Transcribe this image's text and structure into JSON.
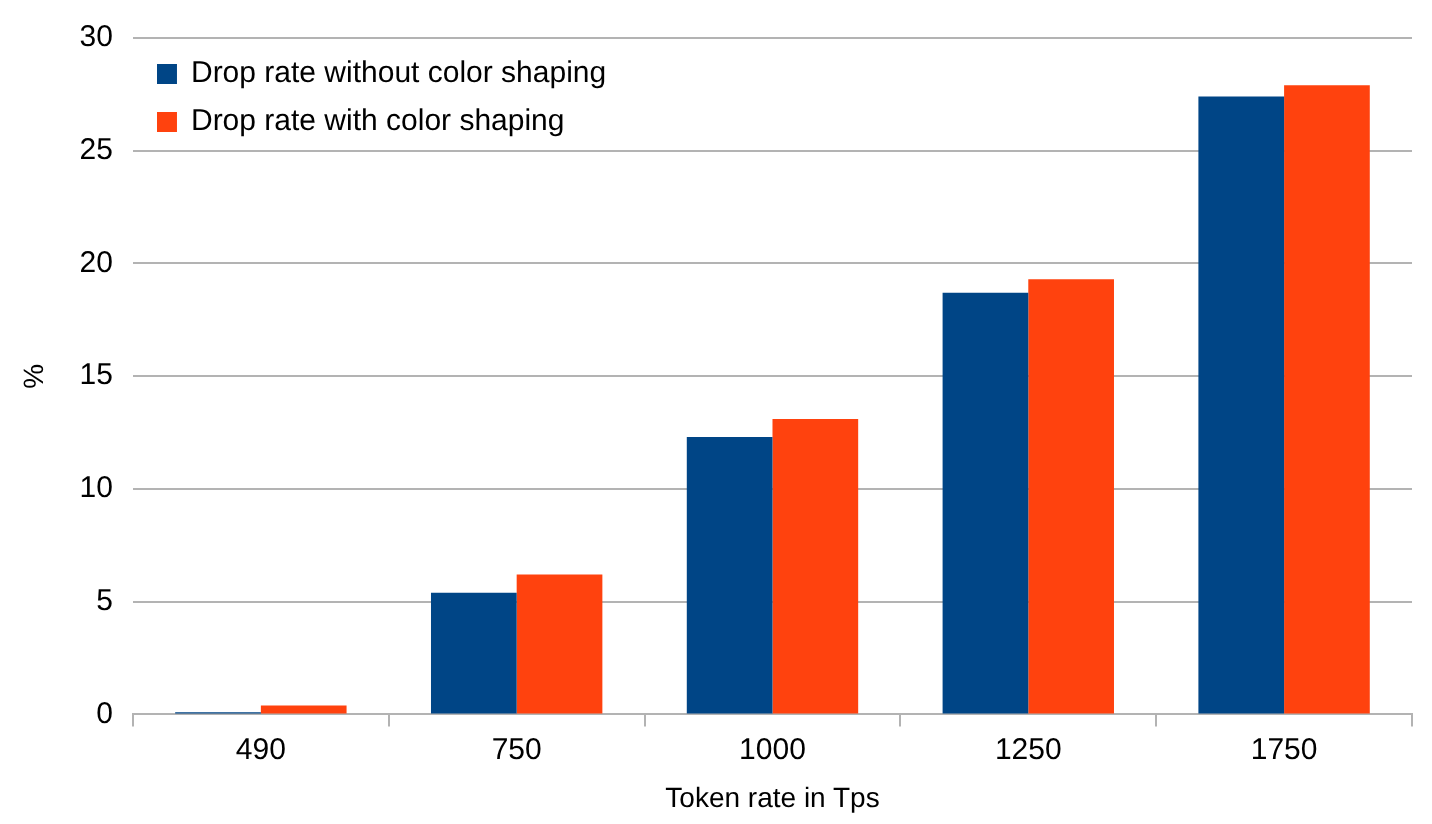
{
  "chart_data": {
    "type": "bar",
    "xlabel": "Token rate in Tps",
    "ylabel": "%",
    "categories": [
      "490",
      "750",
      "1000",
      "1250",
      "1750"
    ],
    "series": [
      {
        "name": "Drop rate without color shaping",
        "color": "#004586",
        "values": [
          0.1,
          5.4,
          12.3,
          18.7,
          27.4
        ]
      },
      {
        "name": "Drop rate with color shaping",
        "color": "#ff420e",
        "values": [
          0.4,
          6.2,
          13.1,
          19.3,
          27.9
        ]
      }
    ],
    "ylim": [
      0,
      30
    ],
    "yticks": [
      0,
      5,
      10,
      15,
      20,
      25,
      30
    ],
    "grid": "y",
    "legend": "top left"
  }
}
